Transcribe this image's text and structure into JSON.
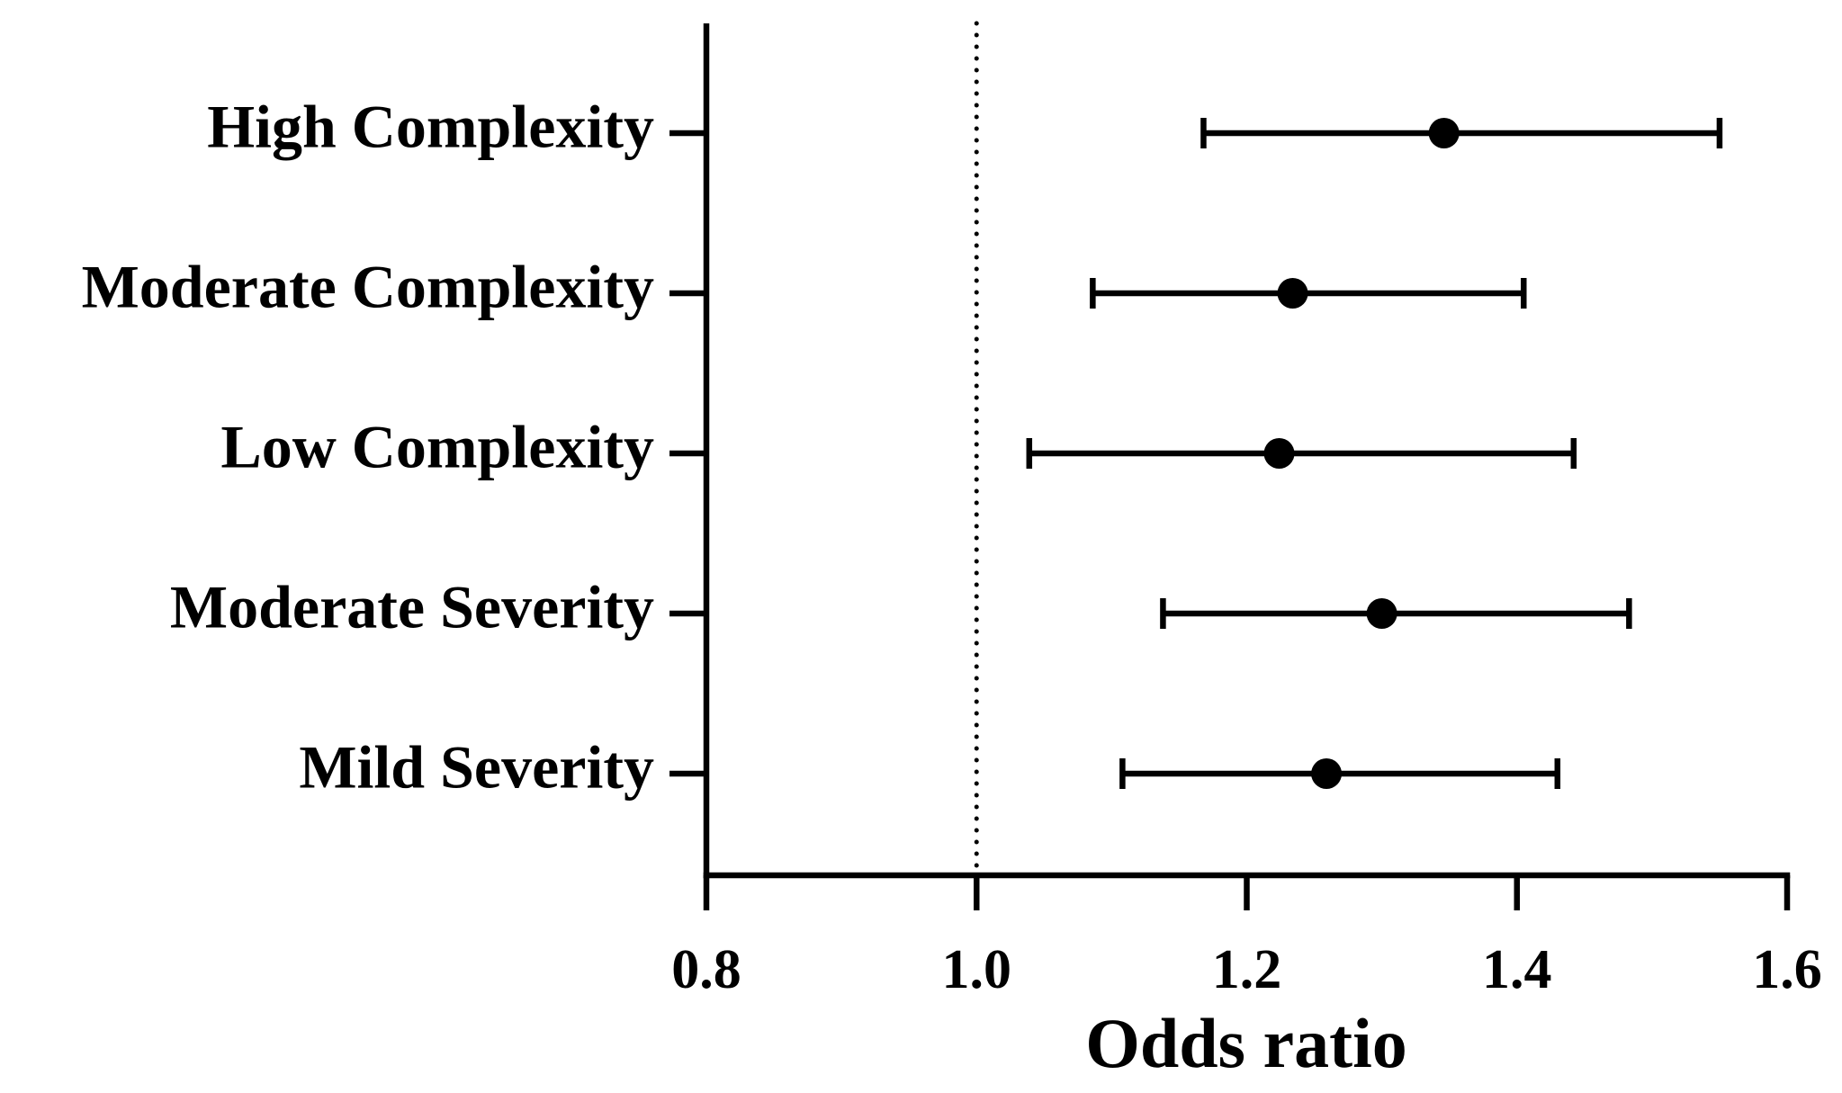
{
  "chart_data": {
    "type": "forest",
    "categories": [
      "High Complexity",
      "Moderate Complexity",
      "Low Complexity",
      "Moderate Severity",
      "Mild Severity"
    ],
    "values": [
      1.346,
      1.234,
      1.224,
      1.3,
      1.259
    ],
    "lower": [
      1.168,
      1.086,
      1.039,
      1.138,
      1.108
    ],
    "upper": [
      1.55,
      1.405,
      1.442,
      1.483,
      1.43
    ],
    "color": "#000000",
    "x_label": "Odds ratio",
    "xlim": [
      0.8,
      1.6
    ],
    "xticks": [
      0.8,
      {
        "value": 1,
        "label": "1.0"
      },
      1.2,
      1.4,
      1.6
    ],
    "reference_x": 1
  }
}
